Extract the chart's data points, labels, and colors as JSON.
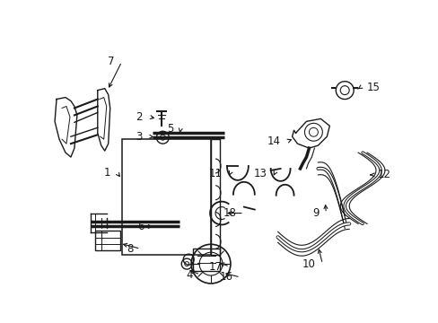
{
  "background_color": "#ffffff",
  "line_color": "#1a1a1a",
  "lw": 1.0,
  "label_fontsize": 8.5,
  "figsize": [
    4.89,
    3.6
  ],
  "dpi": 100
}
